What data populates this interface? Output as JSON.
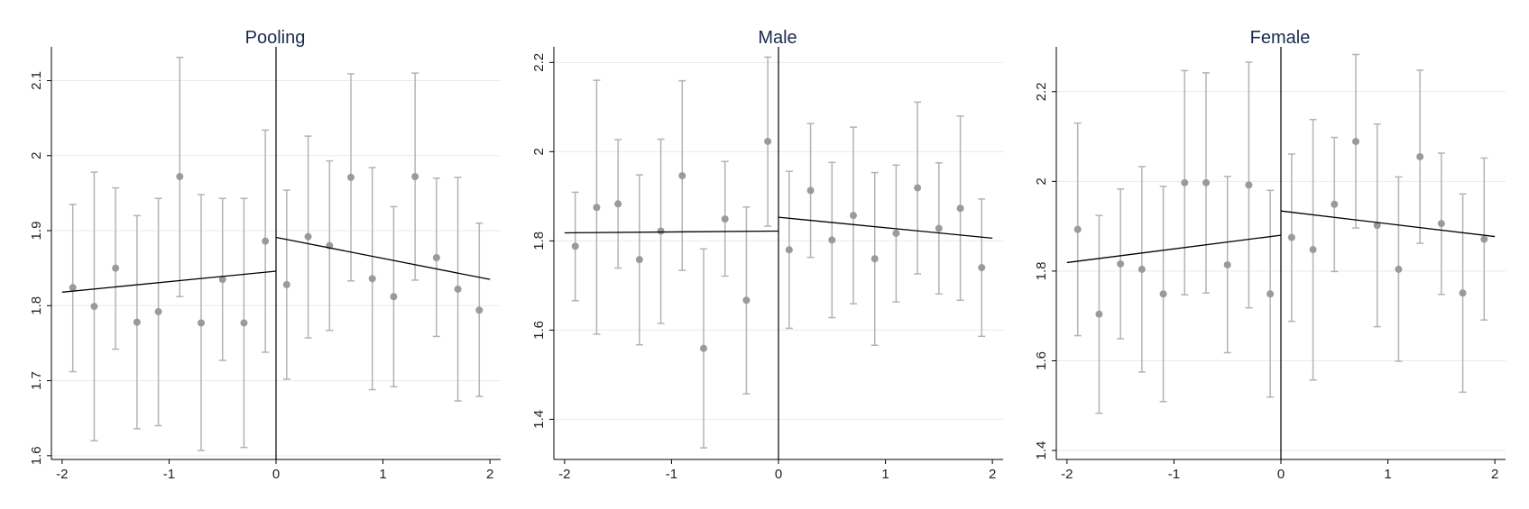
{
  "colors": {
    "background": "#ffffff",
    "axis": "#000000",
    "grid": "#eaeaea",
    "points": "#9a9a9a",
    "error_bars": "#b3b3b3",
    "fit_line": "#000000",
    "title": "#1a2a4a"
  },
  "chart_data": [
    {
      "type": "scatter",
      "title": "Pooling",
      "xlabel": "",
      "ylabel": "",
      "xlim": [
        -2.1,
        2.1
      ],
      "ylim": [
        1.595,
        2.145
      ],
      "xticks": [
        -2,
        -1,
        0,
        1,
        2
      ],
      "xtick_labels": [
        "-2",
        "-1",
        "0",
        "1",
        "2"
      ],
      "yticks": [
        1.6,
        1.7,
        1.8,
        1.9,
        2.0,
        2.1
      ],
      "ytick_labels": [
        "1.6",
        "1.7",
        "1.8",
        "1.9",
        "2",
        "2.1"
      ],
      "grid": true,
      "cutoff": 0,
      "points": [
        {
          "x": -1.9,
          "y": 1.824,
          "lo": 1.712,
          "hi": 1.935
        },
        {
          "x": -1.7,
          "y": 1.799,
          "lo": 1.62,
          "hi": 1.978
        },
        {
          "x": -1.5,
          "y": 1.85,
          "lo": 1.742,
          "hi": 1.957
        },
        {
          "x": -1.3,
          "y": 1.778,
          "lo": 1.636,
          "hi": 1.92
        },
        {
          "x": -1.1,
          "y": 1.792,
          "lo": 1.64,
          "hi": 1.943
        },
        {
          "x": -0.9,
          "y": 1.972,
          "lo": 1.812,
          "hi": 2.131
        },
        {
          "x": -0.7,
          "y": 1.777,
          "lo": 1.607,
          "hi": 1.948
        },
        {
          "x": -0.5,
          "y": 1.835,
          "lo": 1.727,
          "hi": 1.943
        },
        {
          "x": -0.3,
          "y": 1.777,
          "lo": 1.611,
          "hi": 1.943
        },
        {
          "x": -0.1,
          "y": 1.886,
          "lo": 1.738,
          "hi": 2.034
        },
        {
          "x": 0.1,
          "y": 1.828,
          "lo": 1.702,
          "hi": 1.954
        },
        {
          "x": 0.3,
          "y": 1.892,
          "lo": 1.757,
          "hi": 2.026
        },
        {
          "x": 0.5,
          "y": 1.88,
          "lo": 1.767,
          "hi": 1.993
        },
        {
          "x": 0.7,
          "y": 1.971,
          "lo": 1.833,
          "hi": 2.109
        },
        {
          "x": 0.9,
          "y": 1.836,
          "lo": 1.688,
          "hi": 1.984
        },
        {
          "x": 1.1,
          "y": 1.812,
          "lo": 1.692,
          "hi": 1.932
        },
        {
          "x": 1.3,
          "y": 1.972,
          "lo": 1.834,
          "hi": 2.11
        },
        {
          "x": 1.5,
          "y": 1.864,
          "lo": 1.759,
          "hi": 1.97
        },
        {
          "x": 1.7,
          "y": 1.822,
          "lo": 1.673,
          "hi": 1.971
        },
        {
          "x": 1.9,
          "y": 1.794,
          "lo": 1.679,
          "hi": 1.91
        }
      ],
      "fit_lines": [
        {
          "x": [
            -2,
            0
          ],
          "y": [
            1.818,
            1.846
          ]
        },
        {
          "x": [
            0,
            2
          ],
          "y": [
            1.891,
            1.835
          ]
        }
      ]
    },
    {
      "type": "scatter",
      "title": "Male",
      "xlabel": "",
      "ylabel": "",
      "xlim": [
        -2.1,
        2.1
      ],
      "ylim": [
        1.31,
        2.235
      ],
      "xticks": [
        -2,
        -1,
        0,
        1,
        2
      ],
      "xtick_labels": [
        "-2",
        "-1",
        "0",
        "1",
        "2"
      ],
      "yticks": [
        1.4,
        1.6,
        1.8,
        2.0,
        2.2
      ],
      "ytick_labels": [
        "1.4",
        "1.6",
        "1.8",
        "2",
        "2.2"
      ],
      "grid": true,
      "cutoff": 0,
      "points": [
        {
          "x": -1.9,
          "y": 1.788,
          "lo": 1.666,
          "hi": 1.909
        },
        {
          "x": -1.7,
          "y": 1.875,
          "lo": 1.591,
          "hi": 2.16
        },
        {
          "x": -1.5,
          "y": 1.883,
          "lo": 1.739,
          "hi": 2.027
        },
        {
          "x": -1.3,
          "y": 1.758,
          "lo": 1.567,
          "hi": 1.948
        },
        {
          "x": -1.1,
          "y": 1.822,
          "lo": 1.615,
          "hi": 2.028
        },
        {
          "x": -0.9,
          "y": 1.946,
          "lo": 1.734,
          "hi": 2.159
        },
        {
          "x": -0.7,
          "y": 1.559,
          "lo": 1.336,
          "hi": 1.782
        },
        {
          "x": -0.5,
          "y": 1.849,
          "lo": 1.721,
          "hi": 1.978
        },
        {
          "x": -0.3,
          "y": 1.667,
          "lo": 1.457,
          "hi": 1.876
        },
        {
          "x": -0.1,
          "y": 2.023,
          "lo": 1.833,
          "hi": 2.212
        },
        {
          "x": 0.1,
          "y": 1.78,
          "lo": 1.604,
          "hi": 1.956
        },
        {
          "x": 0.3,
          "y": 1.913,
          "lo": 1.763,
          "hi": 2.063
        },
        {
          "x": 0.5,
          "y": 1.802,
          "lo": 1.628,
          "hi": 1.976
        },
        {
          "x": 0.7,
          "y": 1.857,
          "lo": 1.659,
          "hi": 2.055
        },
        {
          "x": 0.9,
          "y": 1.76,
          "lo": 1.566,
          "hi": 1.953
        },
        {
          "x": 1.1,
          "y": 1.817,
          "lo": 1.663,
          "hi": 1.97
        },
        {
          "x": 1.3,
          "y": 1.919,
          "lo": 1.726,
          "hi": 2.111
        },
        {
          "x": 1.5,
          "y": 1.828,
          "lo": 1.681,
          "hi": 1.975
        },
        {
          "x": 1.7,
          "y": 1.873,
          "lo": 1.667,
          "hi": 2.08
        },
        {
          "x": 1.9,
          "y": 1.74,
          "lo": 1.586,
          "hi": 1.894
        }
      ],
      "fit_lines": [
        {
          "x": [
            -2,
            0
          ],
          "y": [
            1.818,
            1.822
          ]
        },
        {
          "x": [
            0,
            2
          ],
          "y": [
            1.853,
            1.806
          ]
        }
      ]
    },
    {
      "type": "scatter",
      "title": "Female",
      "xlabel": "",
      "ylabel": "",
      "xlim": [
        -2.1,
        2.1
      ],
      "ylim": [
        1.38,
        2.3
      ],
      "xticks": [
        -2,
        -1,
        0,
        1,
        2
      ],
      "xtick_labels": [
        "-2",
        "-1",
        "0",
        "1",
        "2"
      ],
      "yticks": [
        1.4,
        1.6,
        1.8,
        2.0,
        2.2
      ],
      "ytick_labels": [
        "1.4",
        "1.6",
        "1.8",
        "2",
        "2.2"
      ],
      "grid": true,
      "cutoff": 0,
      "points": [
        {
          "x": -1.9,
          "y": 1.893,
          "lo": 1.656,
          "hi": 2.13
        },
        {
          "x": -1.7,
          "y": 1.704,
          "lo": 1.483,
          "hi": 1.924
        },
        {
          "x": -1.5,
          "y": 1.816,
          "lo": 1.649,
          "hi": 1.983
        },
        {
          "x": -1.3,
          "y": 1.804,
          "lo": 1.575,
          "hi": 2.033
        },
        {
          "x": -1.1,
          "y": 1.749,
          "lo": 1.509,
          "hi": 1.989
        },
        {
          "x": -0.9,
          "y": 1.997,
          "lo": 1.747,
          "hi": 2.247
        },
        {
          "x": -0.7,
          "y": 1.997,
          "lo": 1.751,
          "hi": 2.242
        },
        {
          "x": -0.5,
          "y": 1.814,
          "lo": 1.618,
          "hi": 2.011
        },
        {
          "x": -0.3,
          "y": 1.992,
          "lo": 1.718,
          "hi": 2.266
        },
        {
          "x": -0.1,
          "y": 1.749,
          "lo": 1.519,
          "hi": 1.98
        },
        {
          "x": 0.1,
          "y": 1.875,
          "lo": 1.688,
          "hi": 2.061
        },
        {
          "x": 0.3,
          "y": 1.848,
          "lo": 1.557,
          "hi": 2.138
        },
        {
          "x": 0.5,
          "y": 1.949,
          "lo": 1.799,
          "hi": 2.098
        },
        {
          "x": 0.7,
          "y": 2.089,
          "lo": 1.896,
          "hi": 2.283
        },
        {
          "x": 0.9,
          "y": 1.902,
          "lo": 1.676,
          "hi": 2.128
        },
        {
          "x": 1.1,
          "y": 1.804,
          "lo": 1.599,
          "hi": 2.01
        },
        {
          "x": 1.3,
          "y": 2.055,
          "lo": 1.862,
          "hi": 2.248
        },
        {
          "x": 1.5,
          "y": 1.906,
          "lo": 1.748,
          "hi": 2.063
        },
        {
          "x": 1.7,
          "y": 1.751,
          "lo": 1.53,
          "hi": 1.972
        },
        {
          "x": 1.9,
          "y": 1.871,
          "lo": 1.691,
          "hi": 2.052
        }
      ],
      "fit_lines": [
        {
          "x": [
            -2,
            0
          ],
          "y": [
            1.819,
            1.88
          ]
        },
        {
          "x": [
            0,
            2
          ],
          "y": [
            1.934,
            1.877
          ]
        }
      ]
    }
  ]
}
